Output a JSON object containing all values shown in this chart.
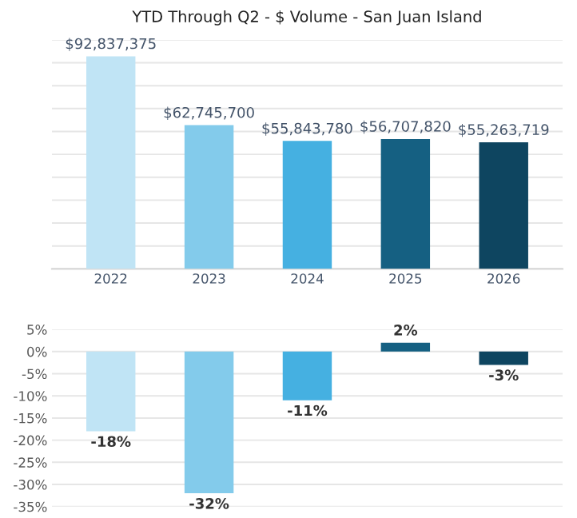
{
  "chart_data": [
    {
      "type": "bar",
      "title": "YTD Through Q2 - $ Volume - San Juan Island",
      "categories": [
        "2022",
        "2023",
        "2024",
        "2025",
        "2026"
      ],
      "values": [
        92837375,
        62745700,
        55843780,
        56707820,
        55263719
      ],
      "colors": [
        "#c0e4f5",
        "#83cbeb",
        "#45b0e1",
        "#156082",
        "#0e4560"
      ],
      "value_labels": [
        "$92,837,375",
        "$62,745,700",
        "$55,843,780",
        "$56,707,820",
        "$55,263,719"
      ],
      "ylim": [
        0,
        100000000
      ],
      "yticks": [
        {
          "value": 0,
          "label": null
        },
        {
          "value": 10000000,
          "label": null
        },
        {
          "value": 20000000,
          "label": null
        },
        {
          "value": 30000000,
          "label": null
        },
        {
          "value": 40000000,
          "label": null
        },
        {
          "value": 50000000,
          "label": null
        },
        {
          "value": 60000000,
          "label": null
        },
        {
          "value": 70000000,
          "label": null
        },
        {
          "value": 80000000,
          "label": null
        },
        {
          "value": 90000000,
          "label": null
        },
        {
          "value": 100000000,
          "label": null
        }
      ],
      "grid": "y",
      "tick_labels": "x"
    },
    {
      "type": "bar",
      "categories": [
        null,
        null,
        null,
        null,
        null
      ],
      "values": [
        -18,
        -32,
        -11,
        2,
        -3
      ],
      "colors": [
        "#c0e4f5",
        "#83cbeb",
        "#45b0e1",
        "#156082",
        "#0e4560"
      ],
      "value_labels": [
        "-18%",
        "-32%",
        "-11%",
        "2%",
        "-3%"
      ],
      "ylim": [
        -35,
        5
      ],
      "yticks": [
        {
          "value": 5,
          "label": "5%"
        },
        {
          "value": 0,
          "label": "0%"
        },
        {
          "value": -5,
          "label": "-5%"
        },
        {
          "value": -10,
          "label": "-10%"
        },
        {
          "value": -15,
          "label": "-15%"
        },
        {
          "value": -20,
          "label": "-20%"
        },
        {
          "value": -25,
          "label": "-25%"
        },
        {
          "value": -30,
          "label": "-30%"
        },
        {
          "value": -35,
          "label": "-35%"
        }
      ],
      "grid": "y",
      "tick_labels": "y"
    }
  ]
}
